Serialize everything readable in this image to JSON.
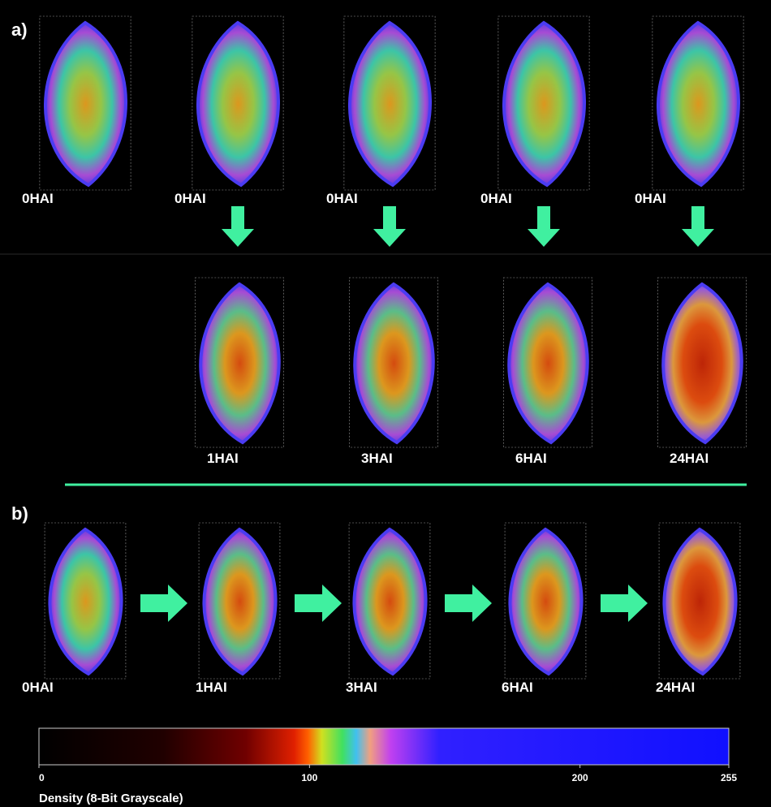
{
  "panel_a": {
    "label": "a)",
    "top_row": [
      "0HAI",
      "0HAI",
      "0HAI",
      "0HAI",
      "0HAI"
    ],
    "bottom_row": [
      "1HAI",
      "3HAI",
      "6HAI",
      "24HAI"
    ]
  },
  "panel_b": {
    "label": "b)",
    "row": [
      "0HAI",
      "1HAI",
      "3HAI",
      "6HAI",
      "24HAI"
    ]
  },
  "colorbar": {
    "title": "Density (8-Bit Grayscale)",
    "lim": [
      0,
      255
    ],
    "ticks": [
      0,
      100,
      200,
      255
    ]
  }
}
